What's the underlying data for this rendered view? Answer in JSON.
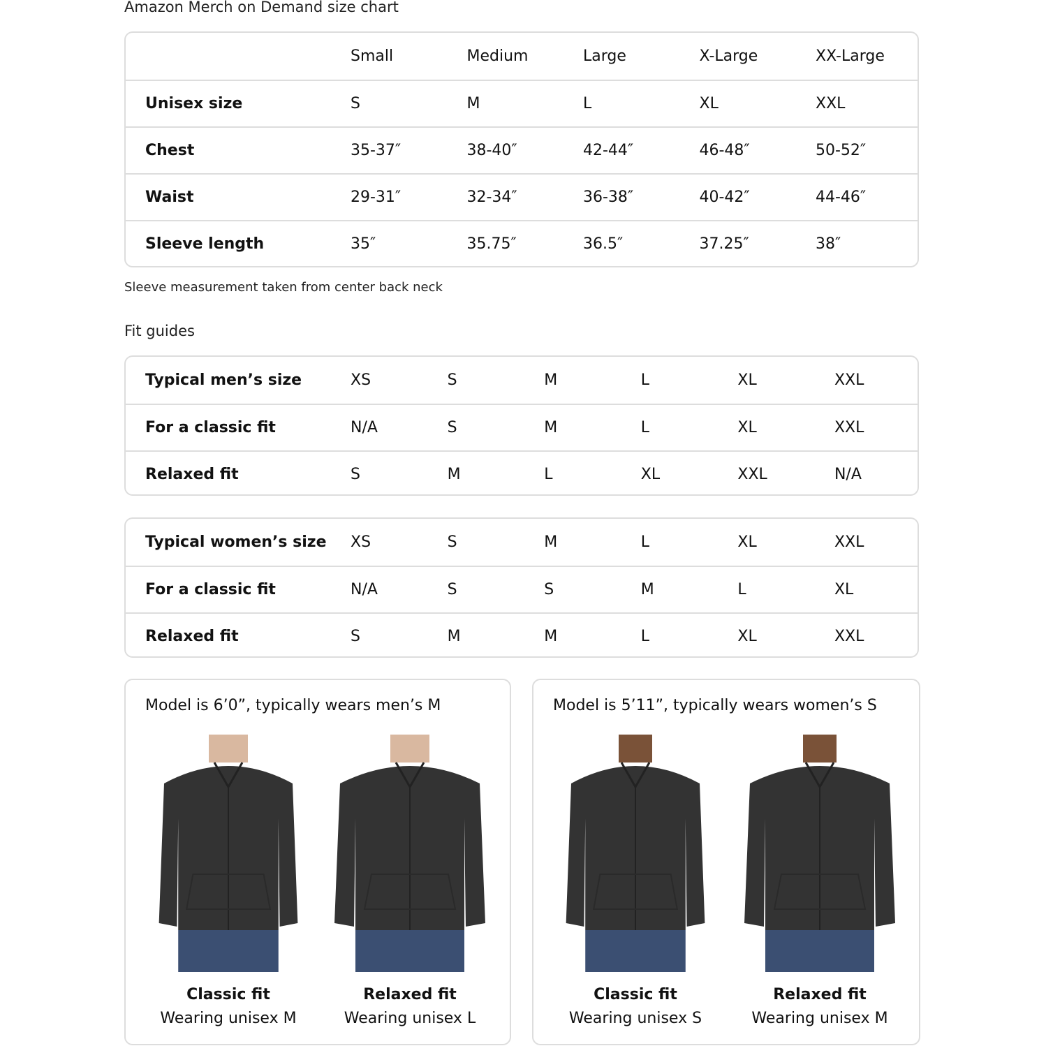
{
  "size_chart": {
    "title": "Amazon Merch on Demand size chart",
    "headers": [
      "",
      "Small",
      "Medium",
      "Large",
      "X-Large",
      "XX-Large"
    ],
    "rows": [
      {
        "label": "Unisex size",
        "values": [
          "S",
          "M",
          "L",
          "XL",
          "XXL"
        ]
      },
      {
        "label": "Chest",
        "values": [
          "35-37″",
          "38-40″",
          "42-44″",
          "46-48″",
          "50-52″"
        ]
      },
      {
        "label": "Waist",
        "values": [
          "29-31″",
          "32-34″",
          "36-38″",
          "40-42″",
          "44-46″"
        ]
      },
      {
        "label": "Sleeve length",
        "values": [
          "35″",
          "35.75″",
          "36.5″",
          "37.25″",
          "38″"
        ]
      }
    ],
    "note": "Sleeve measurement taken from center back neck"
  },
  "fit_guides": {
    "title": "Fit guides",
    "mens": [
      {
        "label": "Typical men’s size",
        "values": [
          "XS",
          "S",
          "M",
          "L",
          "XL",
          "XXL"
        ]
      },
      {
        "label": "For a classic fit",
        "values": [
          "N/A",
          "S",
          "M",
          "L",
          "XL",
          "XXL"
        ]
      },
      {
        "label": "Relaxed fit",
        "values": [
          "S",
          "M",
          "L",
          "XL",
          "XXL",
          "N/A"
        ]
      }
    ],
    "womens": [
      {
        "label": "Typical women’s size",
        "values": [
          "XS",
          "S",
          "M",
          "L",
          "XL",
          "XXL"
        ]
      },
      {
        "label": "For a classic fit",
        "values": [
          "N/A",
          "S",
          "S",
          "M",
          "L",
          "XL"
        ]
      },
      {
        "label": "Relaxed fit",
        "values": [
          "S",
          "M",
          "M",
          "L",
          "XL",
          "XXL"
        ]
      }
    ]
  },
  "models": [
    {
      "title": "Model is 6’0”, typically wears men’s M",
      "photos": [
        {
          "fit": "Classic fit",
          "wearing": "Wearing unisex M"
        },
        {
          "fit": "Relaxed fit",
          "wearing": "Wearing unisex L"
        }
      ]
    },
    {
      "title": "Model is 5’11”, typically wears women’s S",
      "photos": [
        {
          "fit": "Classic fit",
          "wearing": "Wearing unisex S"
        },
        {
          "fit": "Relaxed fit",
          "wearing": "Wearing unisex M"
        }
      ]
    }
  ],
  "colors": {
    "hoodie": "#333333",
    "jeans": "#3b4f72",
    "border": "#dddddd"
  }
}
